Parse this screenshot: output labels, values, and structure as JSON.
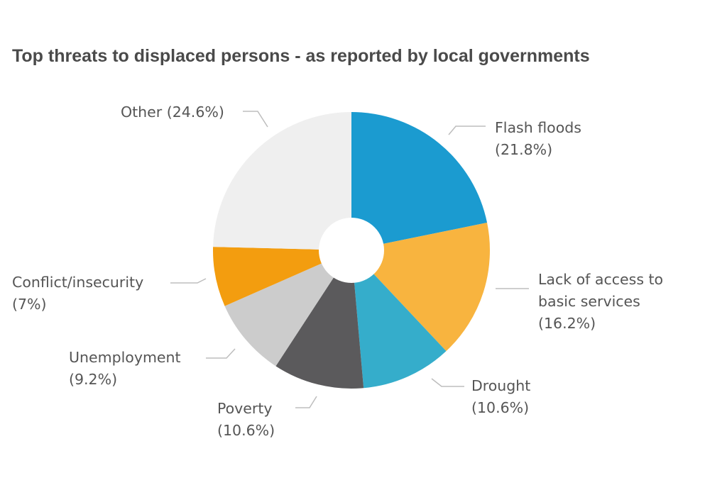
{
  "chart_data": {
    "type": "pie",
    "title": "Top threats to displaced persons - as reported by local governments",
    "unit": "%",
    "donut": true,
    "slices": [
      {
        "name": "Flash floods",
        "value": 21.8,
        "label_lines": [
          "Flash floods",
          "(21.8%)"
        ],
        "color": "#1b9bd0"
      },
      {
        "name": "Lack of access to basic services",
        "value": 16.2,
        "label_lines": [
          "Lack of access to",
          "basic services",
          "(16.2%)"
        ],
        "color": "#f8b43f"
      },
      {
        "name": "Drought",
        "value": 10.6,
        "label_lines": [
          "Drought",
          "(10.6%)"
        ],
        "color": "#35adcb"
      },
      {
        "name": "Poverty",
        "value": 10.6,
        "label_lines": [
          "Poverty",
          "(10.6%)"
        ],
        "color": "#5b5a5c"
      },
      {
        "name": "Unemployment",
        "value": 9.2,
        "label_lines": [
          "Unemployment",
          "(9.2%)"
        ],
        "color": "#cccccc"
      },
      {
        "name": "Conflict/insecurity",
        "value": 7,
        "label_lines": [
          "Conflict/insecurity",
          "(7%)"
        ],
        "color": "#f39d0f"
      },
      {
        "name": "Other",
        "value": 24.6,
        "label_lines": [
          "Other (24.6%)"
        ],
        "color": "#efefef"
      }
    ]
  }
}
